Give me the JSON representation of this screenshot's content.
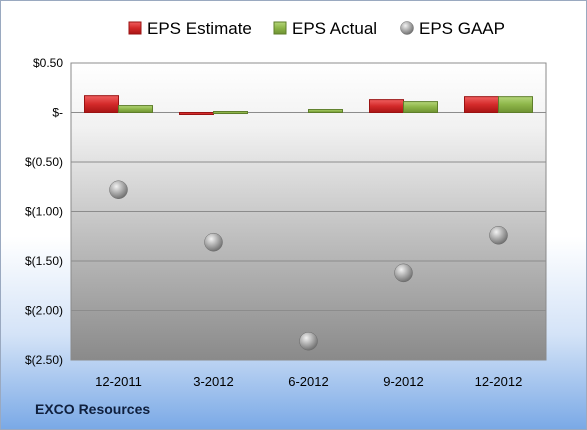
{
  "company": "EXCO Resources",
  "chart_data": {
    "type": "bar",
    "categories": [
      "12-2011",
      "3-2012",
      "6-2012",
      "9-2012",
      "12-2012"
    ],
    "series": [
      {
        "name": "EPS Estimate",
        "kind": "bar",
        "color": "#d42a2a",
        "values": [
          0.17,
          -0.02,
          null,
          0.13,
          0.16
        ]
      },
      {
        "name": "EPS Actual",
        "kind": "bar",
        "color": "#8db548",
        "values": [
          0.07,
          0.01,
          0.03,
          0.11,
          0.16
        ]
      },
      {
        "name": "EPS GAAP",
        "kind": "scatter",
        "color": "#a8a8a8",
        "values": [
          -0.78,
          -1.31,
          -2.31,
          -1.62,
          -1.24
        ]
      }
    ],
    "y_ticks": [
      0.5,
      0,
      -0.5,
      -1.0,
      -1.5,
      -2.0,
      -2.5
    ],
    "y_tick_labels": [
      "$0.50",
      "$-",
      "$(0.50)",
      "$(1.00)",
      "$(1.50)",
      "$(2.00)",
      "$(2.50)"
    ],
    "ylim": [
      -2.5,
      0.5
    ],
    "grid": true,
    "legend": "top"
  }
}
